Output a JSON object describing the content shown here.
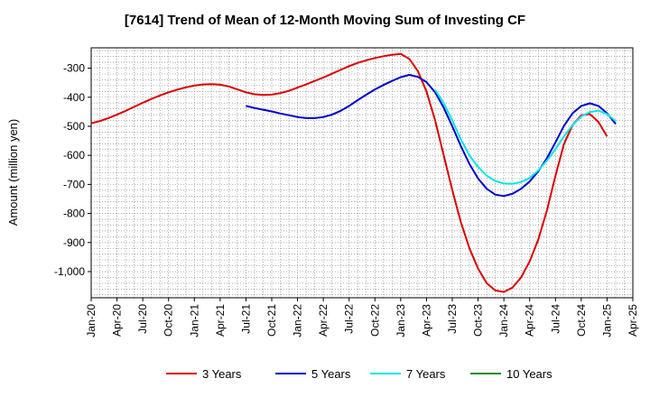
{
  "chart_data": {
    "type": "line",
    "title": "[7614]  Trend of Mean of 12-Month Moving Sum of Investing CF",
    "xlabel": "",
    "ylabel": "Amount (million yen)",
    "ylim": [
      -1090,
      -230
    ],
    "yticks": [
      -300,
      -400,
      -500,
      -600,
      -700,
      -800,
      -900,
      -1000
    ],
    "ytick_labels": [
      "-300",
      "-400",
      "-500",
      "-600",
      "-700",
      "-800",
      "-900",
      "-1,000"
    ],
    "xtick_labels": [
      "Jan-20",
      "Apr-20",
      "Jul-20",
      "Oct-20",
      "Jan-21",
      "Apr-21",
      "Jul-21",
      "Oct-21",
      "Jan-22",
      "Apr-22",
      "Jul-22",
      "Oct-22",
      "Jan-23",
      "Apr-23",
      "Jul-23",
      "Oct-23",
      "Jan-24",
      "Apr-24",
      "Jul-24",
      "Oct-24",
      "Jan-25",
      "Apr-25"
    ],
    "x_start": "Jan-20",
    "grid": true,
    "legend_position": "bottom",
    "series": [
      {
        "name": "3 Years",
        "color": "#dd0000",
        "start_index": 0,
        "values": [
          -490,
          -482,
          -472,
          -460,
          -447,
          -433,
          -419,
          -406,
          -394,
          -383,
          -374,
          -366,
          -360,
          -356,
          -355,
          -357,
          -363,
          -373,
          -383,
          -390,
          -392,
          -391,
          -386,
          -378,
          -367,
          -356,
          -344,
          -332,
          -319,
          -306,
          -293,
          -282,
          -273,
          -265,
          -259,
          -254,
          -251,
          -268,
          -310,
          -380,
          -480,
          -600,
          -720,
          -830,
          -920,
          -990,
          -1040,
          -1065,
          -1070,
          -1055,
          -1020,
          -965,
          -890,
          -790,
          -670,
          -560,
          -495,
          -462,
          -458,
          -485,
          -535
        ]
      },
      {
        "name": "5 Years",
        "color": "#0000cc",
        "start_index": 18,
        "values": [
          -430,
          -437,
          -443,
          -449,
          -456,
          -462,
          -468,
          -472,
          -472,
          -468,
          -460,
          -447,
          -430,
          -410,
          -391,
          -373,
          -358,
          -344,
          -331,
          -323,
          -330,
          -348,
          -383,
          -436,
          -500,
          -568,
          -630,
          -680,
          -715,
          -735,
          -740,
          -732,
          -715,
          -690,
          -655,
          -610,
          -555,
          -498,
          -455,
          -430,
          -421,
          -430,
          -455,
          -492
        ]
      },
      {
        "name": "7 Years",
        "color": "#00e5e5",
        "start_index": 40,
        "values": [
          -375,
          -420,
          -480,
          -545,
          -600,
          -640,
          -670,
          -688,
          -697,
          -698,
          -692,
          -678,
          -652,
          -618,
          -578,
          -535,
          -495,
          -466,
          -451,
          -446,
          -458,
          -482
        ]
      },
      {
        "name": "10 Years",
        "color": "#228b22",
        "start_index": 0,
        "values": []
      }
    ]
  }
}
